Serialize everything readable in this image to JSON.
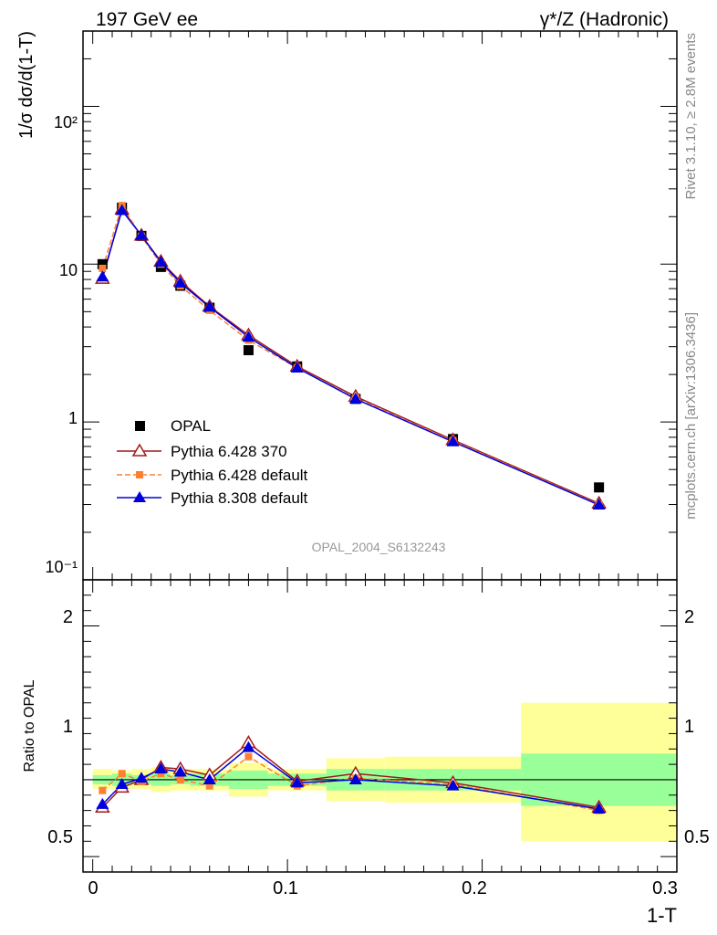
{
  "header": {
    "left_title": "197 GeV ee",
    "right_title": "γ*/Z (Hadronic)"
  },
  "side_labels": {
    "rivet": "Rivet 3.1.10, ≥ 2.8M events",
    "mcplots": "mcplots.cern.ch [arXiv:1306.3436]"
  },
  "analysis_tag": "OPAL_2004_S6132243",
  "colors": {
    "opal": "#000000",
    "p6_370": "#a01a1a",
    "p6_default": "#ff8030",
    "p8_default": "#0000dd",
    "band_inner": "#99ff99",
    "band_outer": "#ffff99"
  },
  "chart_data": [
    {
      "type": "scatter",
      "panel": "main",
      "ylabel": "1/σ dσ/d(1-T)",
      "yscale": "log",
      "ylim": [
        0.1,
        300
      ],
      "xlim": [
        -0.005,
        0.3
      ],
      "y_tick_labels": [
        "10⁻¹",
        "1",
        "10",
        "10²"
      ],
      "legend_position": "middle-left",
      "x": [
        0.005,
        0.015,
        0.025,
        0.035,
        0.045,
        0.06,
        0.08,
        0.105,
        0.135,
        0.185,
        0.26
      ],
      "series": [
        {
          "name": "OPAL",
          "marker": "square",
          "values": [
            10.0,
            22.8,
            15.1,
            9.6,
            7.3,
            5.3,
            2.85,
            2.25,
            1.4,
            0.78,
            0.385
          ]
        },
        {
          "name": "Pythia 6.428 370",
          "marker": "open-triangle",
          "values": [
            8.1,
            22.3,
            15.2,
            10.4,
            7.8,
            5.4,
            3.55,
            2.25,
            1.45,
            0.77,
            0.305
          ]
        },
        {
          "name": "Pythia 6.428 default",
          "marker": "small-square",
          "values": [
            9.4,
            23.5,
            15.0,
            10.0,
            7.3,
            5.1,
            3.3,
            2.2,
            1.41,
            0.76,
            0.3
          ]
        },
        {
          "name": "Pythia 8.308 default",
          "marker": "triangle",
          "values": [
            8.3,
            21.9,
            15.2,
            10.3,
            7.6,
            5.35,
            3.45,
            2.2,
            1.4,
            0.75,
            0.298
          ]
        }
      ]
    },
    {
      "type": "line",
      "panel": "ratio",
      "ylabel": "Ratio to OPAL",
      "xlabel": "1-T",
      "ylim": [
        0.4,
        2.3
      ],
      "xlim": [
        -0.005,
        0.3
      ],
      "x_tick_labels": [
        "0",
        "0.1",
        "0.2",
        "0.3"
      ],
      "y_tick_labels": [
        "0.5",
        "1",
        "2"
      ],
      "reference_line": 1,
      "x": [
        0.005,
        0.015,
        0.025,
        0.035,
        0.045,
        0.06,
        0.08,
        0.105,
        0.135,
        0.185,
        0.26
      ],
      "bin_edges": [
        0.0,
        0.01,
        0.02,
        0.03,
        0.04,
        0.05,
        0.07,
        0.09,
        0.12,
        0.15,
        0.22,
        0.3
      ],
      "band_inner": [
        [
          0.97,
          1.03
        ],
        [
          0.96,
          1.04
        ],
        [
          0.97,
          1.03
        ],
        [
          0.96,
          1.04
        ],
        [
          0.97,
          1.03
        ],
        [
          0.96,
          1.04
        ],
        [
          0.94,
          1.06
        ],
        [
          0.96,
          1.04
        ],
        [
          0.93,
          1.07
        ],
        [
          0.93,
          1.07
        ],
        [
          0.83,
          1.17
        ]
      ],
      "band_outer": [
        [
          0.94,
          1.07
        ],
        [
          0.94,
          1.06
        ],
        [
          0.94,
          1.07
        ],
        [
          0.92,
          1.08
        ],
        [
          0.93,
          1.07
        ],
        [
          0.93,
          1.07
        ],
        [
          0.89,
          1.11
        ],
        [
          0.93,
          1.07
        ],
        [
          0.86,
          1.14
        ],
        [
          0.85,
          1.15
        ],
        [
          0.6,
          1.5
        ]
      ],
      "series": [
        {
          "name": "Pythia 6.428 370",
          "values": [
            0.82,
            0.95,
            1.0,
            1.08,
            1.07,
            1.03,
            1.24,
            0.99,
            1.04,
            0.98,
            0.82
          ]
        },
        {
          "name": "Pythia 6.428 default",
          "values": [
            0.93,
            1.04,
            0.99,
            1.04,
            1.0,
            0.96,
            1.15,
            0.96,
            1.01,
            0.97,
            0.8
          ]
        },
        {
          "name": "Pythia 8.308 default",
          "values": [
            0.84,
            0.97,
            1.01,
            1.07,
            1.05,
            1.0,
            1.21,
            0.98,
            1.0,
            0.96,
            0.81
          ]
        }
      ]
    }
  ]
}
